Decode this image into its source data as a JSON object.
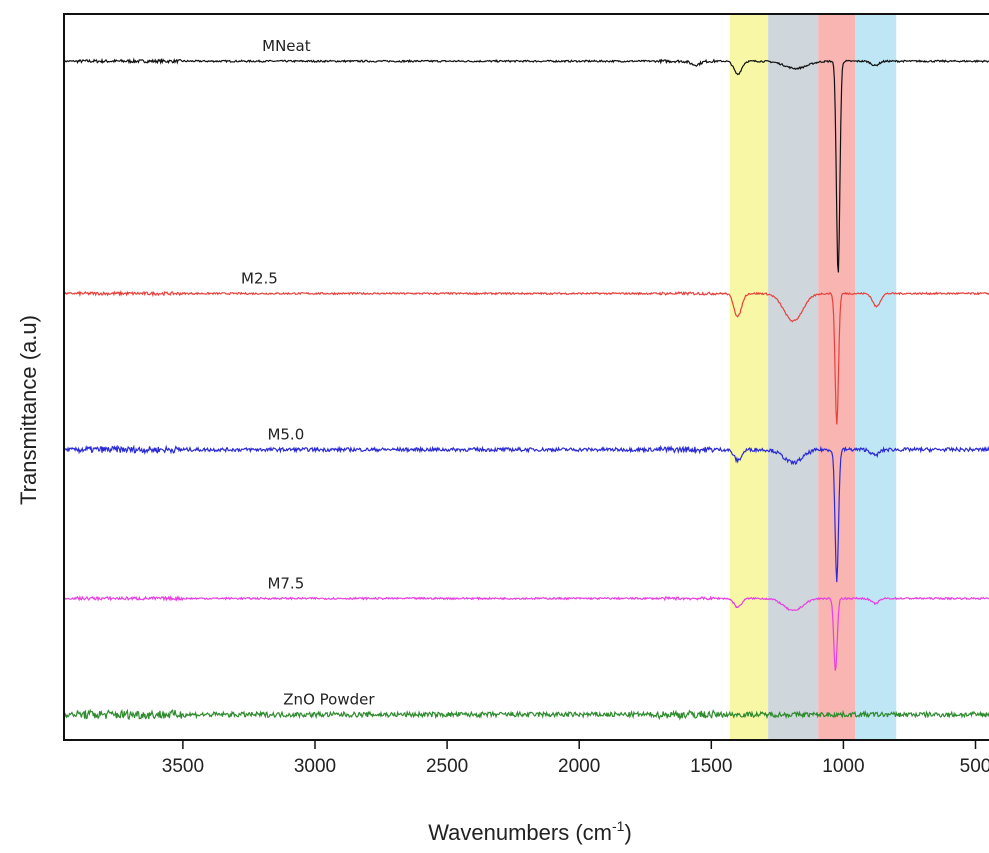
{
  "chart_data": {
    "type": "line",
    "title": "",
    "xlabel": "Wavenumbers (cm",
    "xlabel_sup": "-1",
    "xlabel_close": ")",
    "ylabel": "Transmittance (a.u)",
    "xlim": [
      3950,
      430
    ],
    "x_reversed": true,
    "xticks": [
      3500,
      3000,
      2500,
      2000,
      1500,
      1000,
      500
    ],
    "xtick_labels": [
      "3500",
      "3000",
      "2500",
      "2000",
      "1500",
      "1000",
      "500"
    ],
    "y_ticks_shown": false,
    "grid": false,
    "legend": "none",
    "ylim": [
      0,
      10
    ],
    "bands": [
      {
        "from": 1430,
        "to": 1285,
        "color": "#f7f7a6"
      },
      {
        "from": 1285,
        "to": 1095,
        "color": "#cfd6dc"
      },
      {
        "from": 1095,
        "to": 955,
        "color": "#f8b5b2"
      },
      {
        "from": 955,
        "to": 800,
        "color": "#bfe6f5"
      }
    ],
    "series": [
      {
        "name": "MNeat",
        "color": "#111111",
        "baseline": 9.35,
        "noise": 0.012,
        "dips": [
          {
            "x": 1560,
            "depth": 0.05,
            "width": 25
          },
          {
            "x": 1400,
            "depth": 0.18,
            "width": 20
          },
          {
            "x": 1180,
            "depth": 0.1,
            "width": 60
          },
          {
            "x": 1020,
            "depth": 2.95,
            "width": 9
          },
          {
            "x": 880,
            "depth": 0.06,
            "width": 20
          }
        ]
      },
      {
        "name": "M2.5",
        "color": "#e8413c",
        "baseline": 6.15,
        "noise": 0.012,
        "dips": [
          {
            "x": 1400,
            "depth": 0.32,
            "width": 20
          },
          {
            "x": 1190,
            "depth": 0.38,
            "width": 50
          },
          {
            "x": 1025,
            "depth": 1.8,
            "width": 9
          },
          {
            "x": 875,
            "depth": 0.18,
            "width": 20
          }
        ]
      },
      {
        "name": "M5.0",
        "color": "#2b2bd6",
        "baseline": 4.0,
        "noise": 0.025,
        "dips": [
          {
            "x": 1400,
            "depth": 0.15,
            "width": 20
          },
          {
            "x": 1190,
            "depth": 0.18,
            "width": 50
          },
          {
            "x": 1025,
            "depth": 1.8,
            "width": 9
          },
          {
            "x": 880,
            "depth": 0.08,
            "width": 20
          }
        ]
      },
      {
        "name": "M7.5",
        "color": "#e83fe0",
        "baseline": 1.95,
        "noise": 0.012,
        "dips": [
          {
            "x": 1400,
            "depth": 0.12,
            "width": 20
          },
          {
            "x": 1190,
            "depth": 0.17,
            "width": 50
          },
          {
            "x": 1030,
            "depth": 1.0,
            "width": 9
          },
          {
            "x": 880,
            "depth": 0.07,
            "width": 20
          }
        ]
      },
      {
        "name": "ZnO Powder",
        "color": "#2e8b2e",
        "baseline": 0.35,
        "noise": 0.035,
        "dips": []
      }
    ],
    "series_label_x": [
      3200,
      3280,
      3180,
      3180,
      3120
    ]
  }
}
